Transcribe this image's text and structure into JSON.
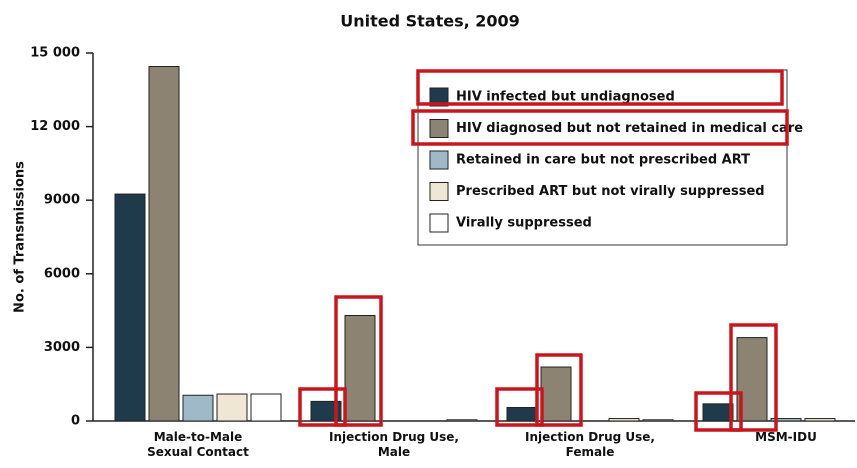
{
  "chart_data": {
    "type": "bar",
    "title": "United States, 2009",
    "y_label": "No. of Transmissions",
    "categories": [
      "Male-to-Male\nSexual Contact",
      "Injection Drug Use,\nMale",
      "Injection Drug Use,\nFemale",
      "MSM-IDU"
    ],
    "series": [
      {
        "name": "HIV infected but undiagnosed",
        "color": "#1f3b4b",
        "values": [
          9250,
          800,
          550,
          700
        ]
      },
      {
        "name": "HIV diagnosed but not retained in medical care",
        "color": "#8c8373",
        "values": [
          14450,
          4300,
          2200,
          3400
        ]
      },
      {
        "name": "Retained in care but not prescribed ART",
        "color": "#9fb9c8",
        "values": [
          1050,
          0,
          0,
          100
        ]
      },
      {
        "name": "Prescribed ART but not virally suppressed",
        "color": "#efe6d3",
        "values": [
          1100,
          0,
          100,
          100
        ]
      },
      {
        "name": "Virally suppressed",
        "color": "#ffffff",
        "values": [
          1100,
          50,
          50,
          0
        ]
      }
    ],
    "ylim": [
      0,
      15000
    ],
    "yticks": [
      0,
      3000,
      6000,
      9000,
      {
        "value": 12000,
        "label": "12 000"
      },
      {
        "value": 15000,
        "label": "15 000"
      }
    ],
    "legend": "top-right"
  }
}
